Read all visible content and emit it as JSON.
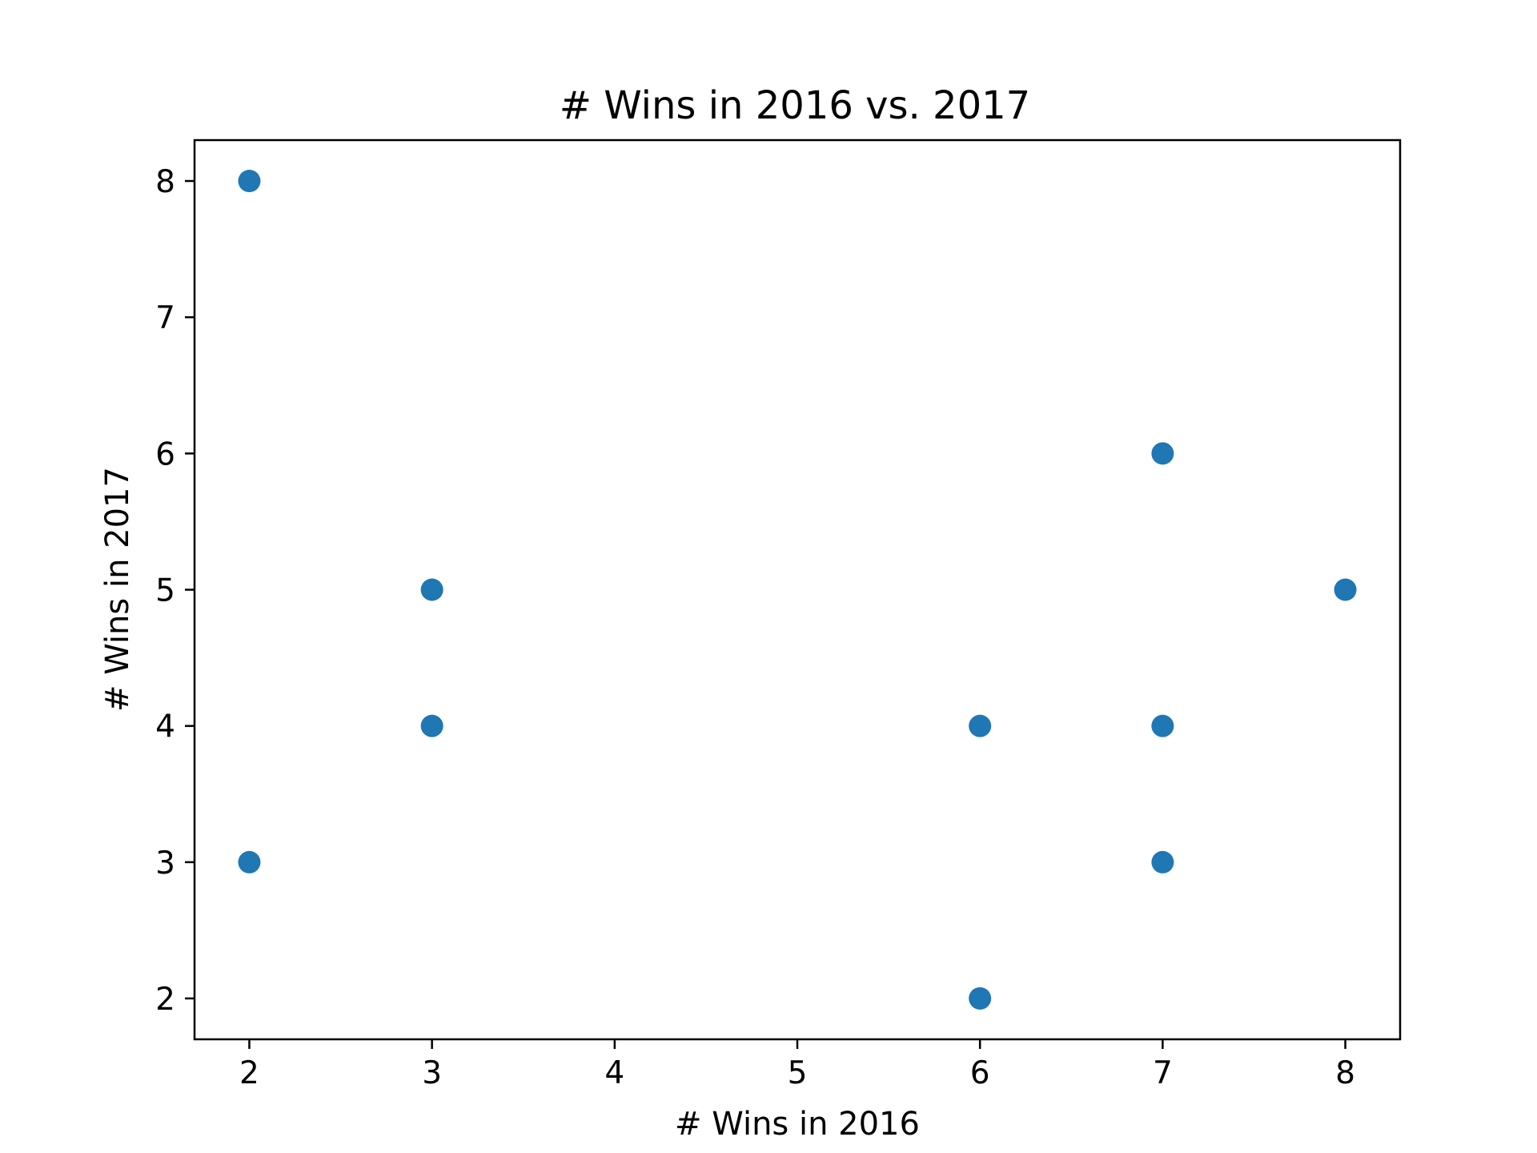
{
  "chart_data": {
    "type": "scatter",
    "title": "# Wins in 2016 vs. 2017",
    "xlabel": "# Wins in 2016",
    "ylabel": "# Wins in 2017",
    "xlim": [
      1.7,
      8.3
    ],
    "ylim": [
      1.7,
      8.3
    ],
    "xticks": [
      "2",
      "3",
      "4",
      "5",
      "6",
      "7",
      "8"
    ],
    "yticks": [
      "2",
      "3",
      "4",
      "5",
      "6",
      "7",
      "8"
    ],
    "grid": false,
    "series": [
      {
        "color": "#1f77b4",
        "points": [
          {
            "x": 2,
            "y": 8
          },
          {
            "x": 2,
            "y": 3
          },
          {
            "x": 3,
            "y": 5
          },
          {
            "x": 3,
            "y": 4
          },
          {
            "x": 6,
            "y": 4
          },
          {
            "x": 6,
            "y": 2
          },
          {
            "x": 7,
            "y": 6
          },
          {
            "x": 7,
            "y": 4
          },
          {
            "x": 7,
            "y": 3
          },
          {
            "x": 8,
            "y": 5
          }
        ]
      }
    ]
  }
}
